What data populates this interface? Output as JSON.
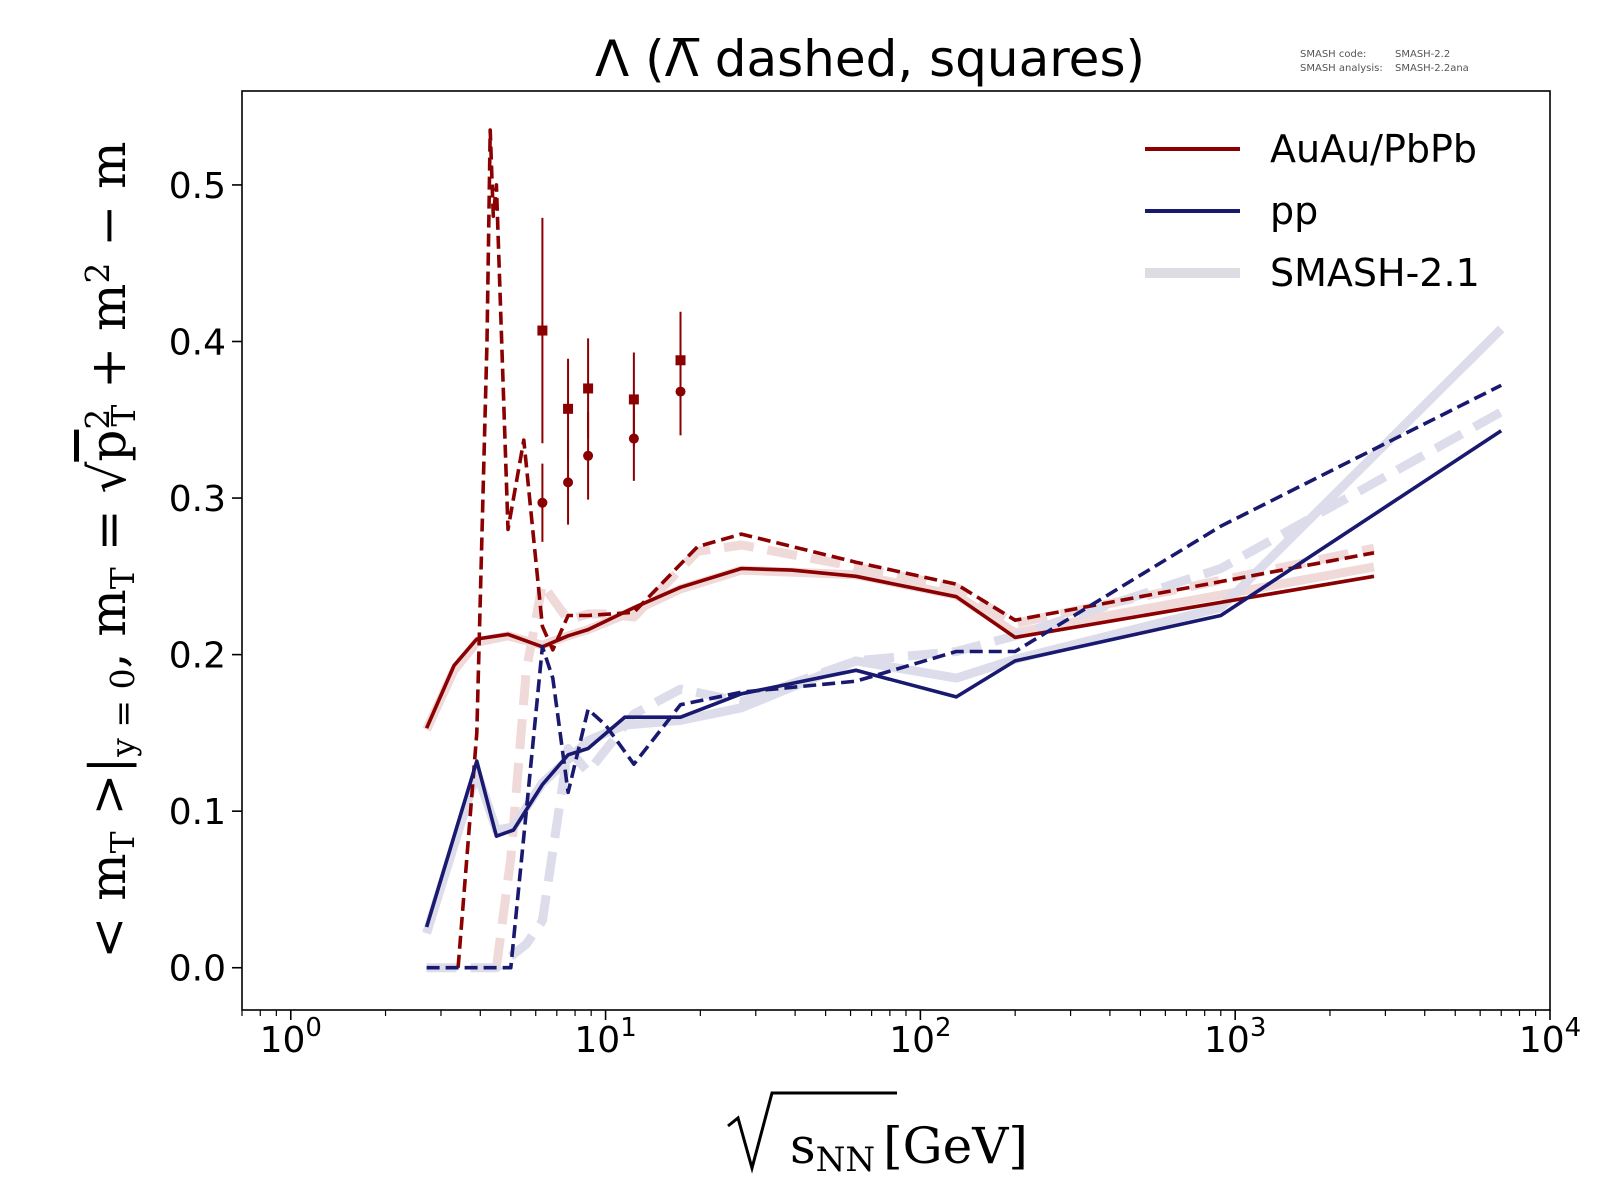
{
  "chart_data": {
    "type": "line",
    "title": "Λ (Λ̅ dashed, squares)",
    "version_note": {
      "code_label": "SMASH code:",
      "code_value": "SMASH-2.2",
      "analysis_label": "SMASH analysis:",
      "analysis_value": "SMASH-2.2ana"
    },
    "x_axis": {
      "scale": "log",
      "label_prefix": "s",
      "label_sub": "NN",
      "label_unit": "[GeV]",
      "range": [
        0.7,
        10000
      ],
      "tick_labels": [
        {
          "value": 1,
          "base": "10",
          "exp": "0"
        },
        {
          "value": 10,
          "base": "10",
          "exp": "1"
        },
        {
          "value": 100,
          "base": "10",
          "exp": "2"
        },
        {
          "value": 1000,
          "base": "10",
          "exp": "3"
        },
        {
          "value": 10000,
          "base": "10",
          "exp": "4"
        }
      ]
    },
    "y_axis": {
      "scale": "linear",
      "label": "<m_T>|_{y=0}, m_T = √(p_T² + m²) − m",
      "range": [
        -0.027,
        0.56
      ],
      "ticks": [
        0.0,
        0.1,
        0.2,
        0.3,
        0.4,
        0.5
      ],
      "tick_labels": [
        "0.0",
        "0.1",
        "0.2",
        "0.3",
        "0.4",
        "0.5"
      ]
    },
    "grid": false,
    "legend": {
      "position": "top-right",
      "entries": [
        {
          "label": "AuAu/PbPb",
          "color": "#8b0000",
          "style": "solid"
        },
        {
          "label": "pp",
          "color": "#191970",
          "style": "solid"
        },
        {
          "label": "SMASH-2.1",
          "color": "#dcdce2",
          "style": "thick"
        }
      ]
    },
    "colors": {
      "auau": "#8b0000",
      "pp": "#191970",
      "auau_ref": "#f0d9d9",
      "pp_ref": "#dcdceb",
      "ref": "#dcdce2"
    },
    "series": [
      {
        "name": "AuAu/PbPb",
        "kind": "line",
        "dash": "solid",
        "color": "#8b0000",
        "x": [
          2.7,
          3.3,
          3.9,
          4.9,
          6.3,
          7.6,
          8.8,
          12.3,
          17.3,
          27,
          39,
          62.4,
          130,
          200,
          2760
        ],
        "y": [
          0.153,
          0.193,
          0.21,
          0.213,
          0.205,
          0.212,
          0.216,
          0.23,
          0.243,
          0.255,
          0.254,
          0.25,
          0.237,
          0.211,
          0.25
        ]
      },
      {
        "kind": "line",
        "dash": "dashed",
        "color": "#8b0000",
        "x": [
          3.4,
          3.9,
          4.2,
          4.3,
          4.4,
          4.5,
          4.9,
          5.5,
          6.3,
          6.8,
          7.6,
          8.8,
          12.3,
          19.6,
          27,
          62.4,
          130,
          200,
          2760
        ],
        "y": [
          0.0,
          0.15,
          0.4,
          0.535,
          0.48,
          0.5,
          0.28,
          0.337,
          0.218,
          0.203,
          0.225,
          0.225,
          0.227,
          0.269,
          0.277,
          0.259,
          0.245,
          0.222,
          0.265
        ]
      },
      {
        "name": "pp",
        "kind": "line",
        "dash": "solid",
        "color": "#191970",
        "x": [
          2.7,
          3.9,
          4.5,
          5.1,
          6.3,
          7.6,
          8.8,
          11.5,
          17.3,
          27,
          62.4,
          130,
          200,
          900,
          7000
        ],
        "y": [
          0.026,
          0.132,
          0.084,
          0.088,
          0.117,
          0.136,
          0.14,
          0.16,
          0.16,
          0.175,
          0.19,
          0.173,
          0.196,
          0.225,
          0.343
        ]
      },
      {
        "kind": "line",
        "dash": "dashed",
        "color": "#191970",
        "x": [
          2.7,
          4.5,
          5.0,
          5.6,
          6.3,
          6.8,
          7.6,
          8.8,
          10.0,
          12.3,
          17.3,
          27,
          62.4,
          130,
          200,
          900,
          7000
        ],
        "y": [
          0.0,
          0.0,
          0.0,
          0.1,
          0.205,
          0.185,
          0.112,
          0.165,
          0.155,
          0.13,
          0.168,
          0.176,
          0.183,
          0.202,
          0.202,
          0.282,
          0.372
        ]
      },
      {
        "kind": "line",
        "dash": "solid",
        "role": "reference",
        "color": "#f0d9d9",
        "x": [
          2.7,
          3.3,
          3.9,
          4.9,
          6.3,
          7.6,
          8.8,
          12.3,
          17.3,
          27,
          62.4,
          130,
          200,
          2760
        ],
        "y": [
          0.152,
          0.19,
          0.208,
          0.212,
          0.206,
          0.212,
          0.216,
          0.228,
          0.242,
          0.254,
          0.251,
          0.238,
          0.214,
          0.256
        ]
      },
      {
        "kind": "line",
        "dash": "dashed",
        "role": "reference",
        "color": "#f0d9d9",
        "x": [
          4.5,
          5.0,
          5.6,
          6.3,
          7.6,
          8.8,
          10.0,
          12.3,
          19.6,
          27,
          62.4,
          130,
          200,
          2760
        ],
        "y": [
          0.0,
          0.07,
          0.19,
          0.245,
          0.222,
          0.226,
          0.226,
          0.224,
          0.266,
          0.27,
          0.256,
          0.243,
          0.22,
          0.268
        ]
      },
      {
        "kind": "line",
        "dash": "solid",
        "role": "reference",
        "color": "#dcdceb",
        "x": [
          2.7,
          3.9,
          4.5,
          5.1,
          6.3,
          7.6,
          8.8,
          11.5,
          17.3,
          27,
          62.4,
          130,
          200,
          900,
          7000
        ],
        "y": [
          0.022,
          0.125,
          0.088,
          0.09,
          0.118,
          0.133,
          0.145,
          0.155,
          0.158,
          0.166,
          0.196,
          0.185,
          0.197,
          0.23,
          0.408
        ]
      },
      {
        "kind": "line",
        "dash": "dashed",
        "role": "reference",
        "color": "#dcdceb",
        "x": [
          2.7,
          4.5,
          5.6,
          6.3,
          7.6,
          8.8,
          12.3,
          17.3,
          27,
          62.4,
          130,
          200,
          900,
          7000
        ],
        "y": [
          0.0,
          0.0,
          0.015,
          0.03,
          0.14,
          0.125,
          0.162,
          0.178,
          0.17,
          0.196,
          0.202,
          0.212,
          0.255,
          0.355
        ]
      },
      {
        "kind": "points",
        "marker": "circle",
        "color": "#8b0000",
        "x": [
          6.3,
          7.6,
          8.8,
          12.3,
          17.3
        ],
        "y": [
          0.297,
          0.31,
          0.327,
          0.338,
          0.368
        ],
        "err": [
          0.025,
          0.027,
          0.028,
          0.027,
          0.028
        ]
      },
      {
        "kind": "points",
        "marker": "square",
        "color": "#8b0000",
        "x": [
          6.3,
          7.6,
          8.8,
          12.3,
          17.3
        ],
        "y": [
          0.407,
          0.357,
          0.37,
          0.363,
          0.388
        ],
        "err": [
          0.072,
          0.032,
          0.032,
          0.03,
          0.031
        ]
      }
    ]
  }
}
